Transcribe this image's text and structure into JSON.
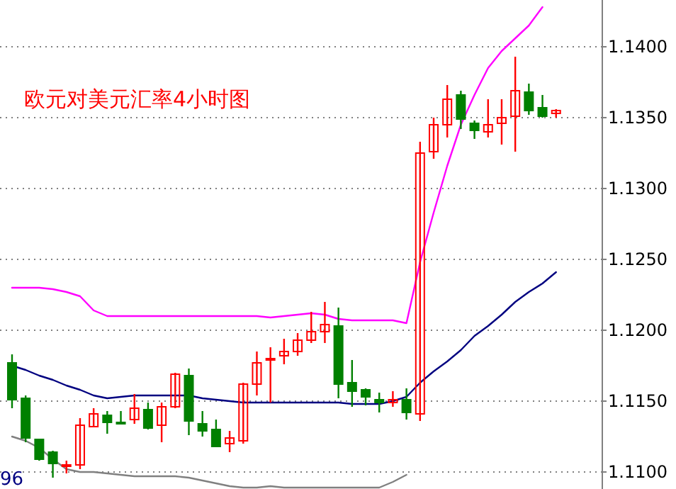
{
  "chart_data": {
    "type": "candlestick",
    "title": "欧元对美元汇率4小时图",
    "categories": [
      null,
      null,
      null,
      null,
      null,
      null,
      null,
      null,
      null,
      null,
      null,
      null,
      null,
      null,
      null,
      null,
      null,
      null,
      null,
      null,
      null,
      null,
      null,
      null,
      null,
      null,
      null,
      null,
      null,
      null,
      null,
      null,
      null,
      null,
      null,
      null,
      null,
      null,
      null,
      null,
      null
    ],
    "ohlc": [
      [
        1.1177,
        1.1183,
        1.1145,
        1.1151
      ],
      [
        1.1152,
        1.1154,
        1.1121,
        1.1124
      ],
      [
        1.1123,
        1.1123,
        1.1108,
        1.1109
      ],
      [
        1.1114,
        1.1115,
        1.1096,
        1.1106
      ],
      [
        1.1104,
        1.1108,
        1.1099,
        1.1105
      ],
      [
        1.1105,
        1.1138,
        1.1102,
        1.1133
      ],
      [
        1.1132,
        1.1145,
        1.1132,
        1.1141
      ],
      [
        1.114,
        1.1143,
        1.1127,
        1.1135
      ],
      [
        1.1135,
        1.1143,
        1.1134,
        1.1134
      ],
      [
        1.1137,
        1.1155,
        1.1134,
        1.1145
      ],
      [
        1.1144,
        1.1149,
        1.113,
        1.1131
      ],
      [
        1.1133,
        1.1149,
        1.1121,
        1.1146
      ],
      [
        1.1146,
        1.117,
        1.1145,
        1.1169
      ],
      [
        1.1168,
        1.1173,
        1.1126,
        1.1136
      ],
      [
        1.1134,
        1.1143,
        1.1125,
        1.1129
      ],
      [
        1.113,
        1.1137,
        1.1118,
        1.1118
      ],
      [
        1.112,
        1.1129,
        1.1114,
        1.1124
      ],
      [
        1.1122,
        1.1163,
        1.112,
        1.1162
      ],
      [
        1.1162,
        1.1185,
        1.1154,
        1.1177
      ],
      [
        1.1179,
        1.1188,
        1.1149,
        1.118
      ],
      [
        1.1182,
        1.1194,
        1.1176,
        1.1185
      ],
      [
        1.1185,
        1.1198,
        1.1182,
        1.1193
      ],
      [
        1.1193,
        1.1213,
        1.1191,
        1.1199
      ],
      [
        1.1199,
        1.122,
        1.1191,
        1.1204
      ],
      [
        1.1203,
        1.1216,
        1.1152,
        1.1162
      ],
      [
        1.1163,
        1.1179,
        1.1146,
        1.1157
      ],
      [
        1.1158,
        1.1159,
        1.1147,
        1.1153
      ],
      [
        1.1151,
        1.1156,
        1.1142,
        1.1149
      ],
      [
        1.1149,
        1.1157,
        1.1146,
        1.1151
      ],
      [
        1.1151,
        1.1159,
        1.1137,
        1.1142
      ],
      [
        1.1141,
        1.1333,
        1.1136,
        1.1325
      ],
      [
        1.1326,
        1.135,
        1.1321,
        1.1345
      ],
      [
        1.1345,
        1.1373,
        1.1336,
        1.1363
      ],
      [
        1.1366,
        1.1369,
        1.1342,
        1.1349
      ],
      [
        1.1346,
        1.1348,
        1.1335,
        1.1341
      ],
      [
        1.134,
        1.1363,
        1.1336,
        1.1345
      ],
      [
        1.1346,
        1.1363,
        1.1331,
        1.135
      ],
      [
        1.1351,
        1.1393,
        1.1326,
        1.1369
      ],
      [
        1.1368,
        1.1374,
        1.1352,
        1.1355
      ],
      [
        1.1357,
        1.1366,
        1.135,
        1.1351
      ],
      [
        1.1353,
        1.1356,
        1.135,
        1.1355
      ]
    ],
    "colors": [
      "#008000",
      "#008000",
      "#008000",
      "#008000",
      "#ff0000",
      "#ff0000",
      "#ff0000",
      "#008000",
      "#008000",
      "#ff0000",
      "#008000",
      "#ff0000",
      "#ff0000",
      "#008000",
      "#008000",
      "#008000",
      "#ff0000",
      "#ff0000",
      "#ff0000",
      "#ff0000",
      "#ff0000",
      "#ff0000",
      "#ff0000",
      "#ff0000",
      "#008000",
      "#008000",
      "#008000",
      "#008000",
      "#ff0000",
      "#008000",
      "#ff0000",
      "#ff0000",
      "#ff0000",
      "#008000",
      "#008000",
      "#ff0000",
      "#ff0000",
      "#ff0000",
      "#008000",
      "#008000",
      "#ff0000"
    ],
    "series": [
      {
        "type": "line",
        "color": "#ff00ff",
        "values": [
          1.123,
          1.123,
          1.123,
          1.1229,
          1.1227,
          1.1224,
          1.1214,
          1.121,
          1.121,
          1.121,
          1.121,
          1.121,
          1.121,
          1.121,
          1.121,
          1.121,
          1.121,
          1.121,
          1.121,
          1.1209,
          1.121,
          1.1211,
          1.1212,
          1.1211,
          1.1208,
          1.1207,
          1.1207,
          1.1207,
          1.1207,
          1.1205,
          1.1248,
          1.1283,
          1.1316,
          1.1345,
          1.1366,
          1.1385,
          1.1397,
          1.1406,
          1.1415,
          1.1428,
          null
        ]
      },
      {
        "type": "line",
        "color": "#000080",
        "values": [
          1.1175,
          1.1172,
          1.1168,
          1.1165,
          1.1161,
          1.1158,
          1.1154,
          1.1152,
          1.1153,
          1.1154,
          1.1154,
          1.1154,
          1.1154,
          1.1154,
          1.1152,
          1.1151,
          1.115,
          1.1149,
          1.1149,
          1.1149,
          1.1149,
          1.1149,
          1.1149,
          1.1149,
          1.1149,
          1.1148,
          1.1148,
          1.1148,
          1.115,
          1.1153,
          1.1163,
          1.1171,
          1.1178,
          1.1186,
          1.1196,
          1.1203,
          1.1211,
          1.122,
          1.1227,
          1.1233,
          1.1241
        ]
      },
      {
        "type": "line",
        "color": "#808080",
        "values": [
          1.1125,
          1.1122,
          1.1117,
          1.1109,
          1.1102,
          1.11,
          1.11,
          1.1099,
          1.1098,
          1.1097,
          1.1097,
          1.1097,
          1.1097,
          1.1096,
          1.1094,
          1.1092,
          1.109,
          1.1089,
          1.1089,
          1.109,
          1.1089,
          1.1089,
          1.1089,
          1.1089,
          1.1089,
          1.1089,
          1.1089,
          1.1089,
          1.1093,
          1.1098,
          null,
          null,
          null,
          null,
          null,
          null,
          null,
          null,
          null,
          null,
          null
        ]
      }
    ],
    "ylim": [
      1.1088,
      1.1433
    ],
    "yticks": [
      {
        "value": 1.11,
        "label": "1.1100"
      },
      {
        "value": 1.115,
        "label": "1.1150"
      },
      {
        "value": 1.12,
        "label": "1.1200"
      },
      {
        "value": 1.125,
        "label": "1.1250"
      },
      {
        "value": 1.13,
        "label": "1.1300"
      },
      {
        "value": 1.135,
        "label": "1.1350"
      },
      {
        "value": 1.14,
        "label": "1.1400"
      }
    ],
    "grid": "y",
    "annotations": [
      "96"
    ]
  }
}
